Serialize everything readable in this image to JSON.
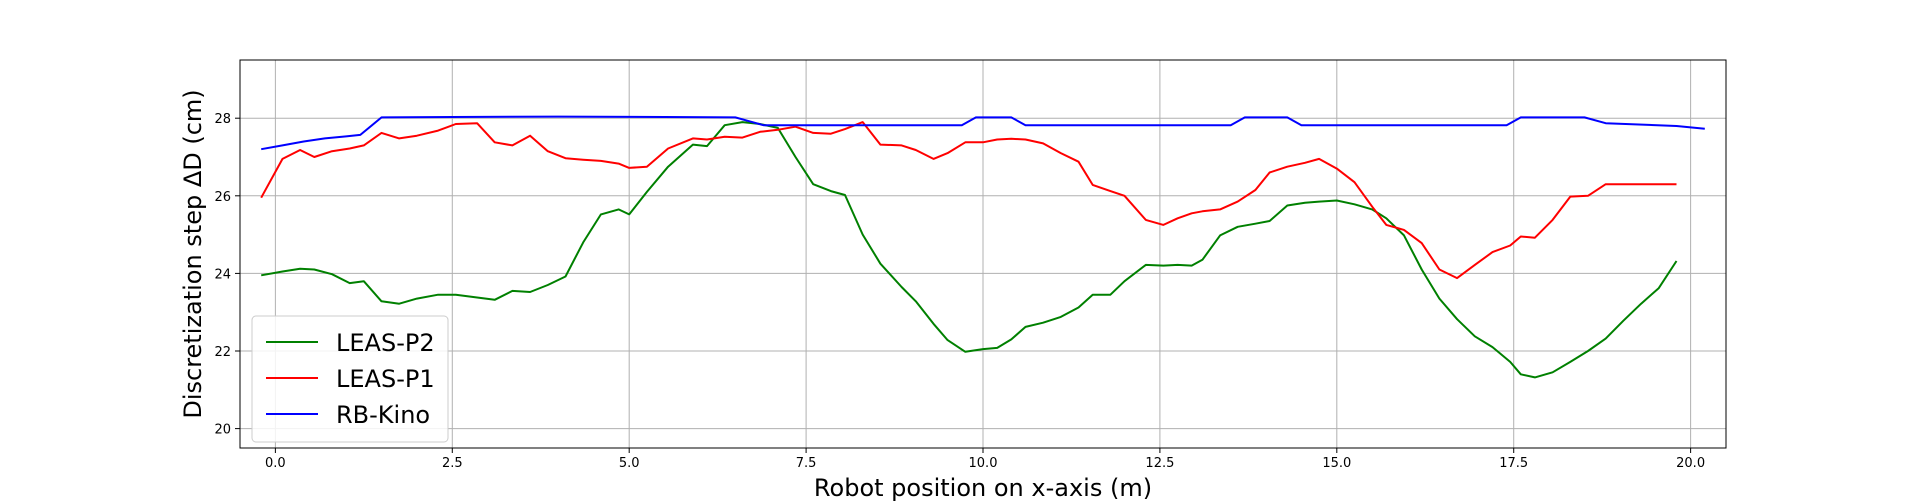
{
  "chart_data": {
    "type": "line",
    "xlabel": "Robot position on x-axis (m)",
    "ylabel": "Discretization step ΔD (cm)",
    "xlim": [
      -0.5,
      20.5
    ],
    "ylim": [
      19.5,
      29.5
    ],
    "xticks": [
      0.0,
      2.5,
      5.0,
      7.5,
      10.0,
      12.5,
      15.0,
      17.5,
      20.0
    ],
    "xtick_labels": [
      "0.0",
      "2.5",
      "5.0",
      "7.5",
      "10.0",
      "12.5",
      "15.0",
      "17.5",
      "20.0"
    ],
    "yticks": [
      20,
      22,
      24,
      26,
      28
    ],
    "ytick_labels": [
      "20",
      "22",
      "24",
      "26",
      "28"
    ],
    "grid": true,
    "legend_position": "bottom-left",
    "series": [
      {
        "name": "LEAS-P2",
        "color": "#008000",
        "x": [
          -0.2,
          0.1,
          0.35,
          0.55,
          0.8,
          1.05,
          1.25,
          1.5,
          1.75,
          2.0,
          2.3,
          2.55,
          2.85,
          3.1,
          3.35,
          3.6,
          3.85,
          4.1,
          4.35,
          4.6,
          4.85,
          5.0,
          5.25,
          5.55,
          5.9,
          6.1,
          6.35,
          6.6,
          6.85,
          7.1,
          7.35,
          7.6,
          7.85,
          8.05,
          8.3,
          8.55,
          8.85,
          9.05,
          9.3,
          9.5,
          9.75,
          10.0,
          10.2,
          10.4,
          10.6,
          10.85,
          11.1,
          11.35,
          11.55,
          11.8,
          12.0,
          12.3,
          12.55,
          12.75,
          12.95,
          13.1,
          13.35,
          13.6,
          13.85,
          14.05,
          14.3,
          14.55,
          14.75,
          15.0,
          15.25,
          15.5,
          15.7,
          15.95,
          16.2,
          16.45,
          16.7,
          16.95,
          17.2,
          17.45,
          17.6,
          17.8,
          18.05,
          18.3,
          18.55,
          18.8,
          19.05,
          19.3,
          19.55,
          19.8
        ],
        "values": [
          23.95,
          24.05,
          24.12,
          24.1,
          23.98,
          23.75,
          23.8,
          23.28,
          23.22,
          23.35,
          23.45,
          23.45,
          23.38,
          23.32,
          23.55,
          23.52,
          23.7,
          23.92,
          24.8,
          25.52,
          25.65,
          25.52,
          26.1,
          26.75,
          27.32,
          27.28,
          27.82,
          27.9,
          27.85,
          27.75,
          27.0,
          26.3,
          26.12,
          26.02,
          25.0,
          24.25,
          23.65,
          23.28,
          22.7,
          22.28,
          21.98,
          22.05,
          22.08,
          22.3,
          22.62,
          22.73,
          22.88,
          23.12,
          23.45,
          23.45,
          23.8,
          24.22,
          24.2,
          24.22,
          24.2,
          24.35,
          24.98,
          25.2,
          25.28,
          25.35,
          25.75,
          25.82,
          25.85,
          25.88,
          25.78,
          25.65,
          25.42,
          24.98,
          24.1,
          23.35,
          22.82,
          22.38,
          22.1,
          21.72,
          21.4,
          21.32,
          21.45,
          21.72,
          22.0,
          22.32,
          22.78,
          23.22,
          23.62,
          24.32
        ]
      },
      {
        "name": "LEAS-P1",
        "color": "#ff0000",
        "x": [
          -0.2,
          0.1,
          0.35,
          0.55,
          0.8,
          1.05,
          1.25,
          1.5,
          1.75,
          2.0,
          2.3,
          2.55,
          2.85,
          3.1,
          3.35,
          3.6,
          3.85,
          4.1,
          4.35,
          4.6,
          4.85,
          5.0,
          5.25,
          5.55,
          5.9,
          6.1,
          6.35,
          6.6,
          6.85,
          7.1,
          7.35,
          7.6,
          7.85,
          8.05,
          8.3,
          8.55,
          8.85,
          9.05,
          9.3,
          9.5,
          9.75,
          10.0,
          10.2,
          10.4,
          10.6,
          10.85,
          11.1,
          11.35,
          11.55,
          11.8,
          12.0,
          12.3,
          12.55,
          12.75,
          12.95,
          13.1,
          13.35,
          13.6,
          13.85,
          14.05,
          14.3,
          14.55,
          14.75,
          15.0,
          15.25,
          15.5,
          15.7,
          15.95,
          16.2,
          16.45,
          16.7,
          16.95,
          17.2,
          17.45,
          17.6,
          17.8,
          18.05,
          18.3,
          18.55,
          18.8,
          19.05,
          19.3,
          19.55,
          19.8
        ],
        "values": [
          25.95,
          26.95,
          27.18,
          27.0,
          27.15,
          27.22,
          27.3,
          27.62,
          27.48,
          27.55,
          27.68,
          27.85,
          27.87,
          27.38,
          27.3,
          27.55,
          27.15,
          26.97,
          26.93,
          26.9,
          26.83,
          26.72,
          26.75,
          27.22,
          27.48,
          27.45,
          27.52,
          27.5,
          27.65,
          27.7,
          27.78,
          27.62,
          27.6,
          27.72,
          27.9,
          27.32,
          27.3,
          27.18,
          26.95,
          27.1,
          27.38,
          27.38,
          27.45,
          27.47,
          27.45,
          27.35,
          27.1,
          26.88,
          26.28,
          26.12,
          26.0,
          25.38,
          25.25,
          25.42,
          25.55,
          25.6,
          25.65,
          25.85,
          26.15,
          26.6,
          26.75,
          26.85,
          26.95,
          26.7,
          26.35,
          25.72,
          25.25,
          25.12,
          24.78,
          24.1,
          23.88,
          24.22,
          24.55,
          24.72,
          24.95,
          24.92,
          25.38,
          25.98,
          26.0,
          26.3,
          26.3,
          26.3,
          26.3,
          26.3
        ]
      },
      {
        "name": "RB-Kino",
        "color": "#0000ff",
        "x": [
          -0.2,
          0.1,
          0.4,
          0.7,
          1.0,
          1.2,
          1.5,
          2.5,
          4.0,
          5.5,
          6.5,
          6.7,
          6.9,
          7.2,
          9.7,
          9.9,
          10.4,
          10.6,
          13.5,
          13.7,
          14.3,
          14.5,
          17.4,
          17.6,
          18.5,
          18.8,
          19.8,
          20.2
        ],
        "values": [
          27.2,
          27.3,
          27.4,
          27.48,
          27.53,
          27.57,
          28.02,
          28.03,
          28.04,
          28.03,
          28.02,
          27.92,
          27.82,
          27.82,
          27.82,
          28.02,
          28.02,
          27.82,
          27.82,
          28.02,
          28.02,
          27.82,
          27.82,
          28.02,
          28.02,
          27.87,
          27.8,
          27.73
        ]
      }
    ]
  }
}
